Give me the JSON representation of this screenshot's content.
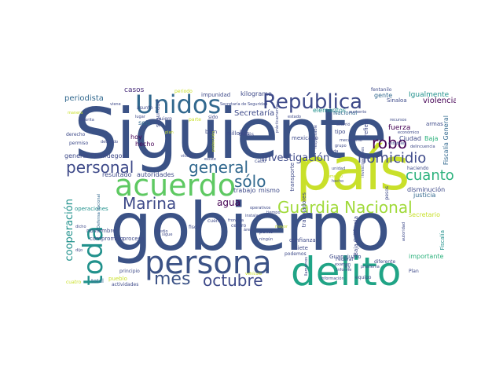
{
  "words": [
    {
      "text": "Siguiente",
      "color": "#3b5286"
    },
    {
      "text": "gobierno",
      "color": "#3b5286"
    },
    {
      "text": "país",
      "color": "#c9e02a"
    },
    {
      "text": "persona",
      "color": "#3b5286"
    },
    {
      "text": "delito",
      "color": "#20a486"
    },
    {
      "text": "acuerdo",
      "color": "#5ec962"
    },
    {
      "text": "Unidos",
      "color": "#31688e"
    },
    {
      "text": "República",
      "color": "#3e4a89"
    },
    {
      "text": "toda",
      "color": "#21918c"
    },
    {
      "text": "Guardia Nacional",
      "color": "#a0da39"
    },
    {
      "text": "homicidio",
      "color": "#3e4a89"
    },
    {
      "text": "personal",
      "color": "#3e4a89"
    },
    {
      "text": "general",
      "color": "#31688e"
    },
    {
      "text": "mes",
      "color": "#3b5286"
    },
    {
      "text": "octubre",
      "color": "#3e4a89"
    },
    {
      "text": "Marina",
      "color": "#3e4a89"
    },
    {
      "text": "sólo",
      "color": "#31688e"
    },
    {
      "text": "robo",
      "color": "#440154"
    },
    {
      "text": "cuanto",
      "color": "#2db27d"
    },
    {
      "text": "investigación",
      "color": "#3e4a89"
    },
    {
      "text": "cooperación",
      "color": "#21918c"
    },
    {
      "text": "agua",
      "color": "#440154"
    },
    {
      "text": "Secretaría",
      "color": "#3e4a89"
    },
    {
      "text": "periodista",
      "color": "#31688e"
    },
    {
      "text": "casos",
      "color": "#472c7a"
    },
    {
      "text": "impunidad",
      "color": "#3e4a89"
    },
    {
      "text": "kilogramo",
      "color": "#3e4a89"
    },
    {
      "text": "gente",
      "color": "#31688e"
    },
    {
      "text": "Igualmente",
      "color": "#21918c"
    },
    {
      "text": "violencia",
      "color": "#440154"
    },
    {
      "text": "Sinaloa",
      "color": "#3e4a89"
    },
    {
      "text": "fentanilo",
      "color": "#3e4a89"
    },
    {
      "text": "elementos",
      "color": "#21918c"
    },
    {
      "text": "Nacional",
      "color": "#31688e"
    },
    {
      "text": "armas",
      "color": "#3e4a89"
    },
    {
      "text": "fuerza",
      "color": "#440154"
    },
    {
      "text": "Ciudad",
      "color": "#3e4a89"
    },
    {
      "text": "Baja",
      "color": "#2db27d"
    },
    {
      "text": "Fiscalía General",
      "color": "#31688e"
    },
    {
      "text": "tipo",
      "color": "#3e4a89"
    },
    {
      "text": "refiere",
      "color": "#3e4a89"
    },
    {
      "text": "mexicano",
      "color": "#3e4a89"
    },
    {
      "text": "seguridad",
      "color": "#3e4a89"
    },
    {
      "text": "seis",
      "color": "#31688e"
    },
    {
      "text": "hoy",
      "color": "#440154"
    },
    {
      "text": "hecho",
      "color": "#440154"
    },
    {
      "text": "general Cienfuegos",
      "color": "#3e4a89"
    },
    {
      "text": "resultado",
      "color": "#3e4a89"
    },
    {
      "text": "autoridades",
      "color": "#3e4a89"
    },
    {
      "text": "trabajo",
      "color": "#3e4a89"
    },
    {
      "text": "mismo",
      "color": "#3e4a89"
    },
    {
      "text": "millones",
      "color": "#3e4a89"
    },
    {
      "text": "transporte",
      "color": "#3e4a89"
    },
    {
      "text": "trabajadores",
      "color": "#3e4a89"
    },
    {
      "text": "disminución",
      "color": "#3e4a89"
    },
    {
      "text": "justicia",
      "color": "#31688e"
    },
    {
      "text": "secretario",
      "color": "#c9e02a"
    },
    {
      "text": "Baja California",
      "color": "#3e4a89"
    },
    {
      "text": "confianza",
      "color": "#3e4a89"
    },
    {
      "text": "Guanajuato",
      "color": "#3e4a89"
    },
    {
      "text": "importante",
      "color": "#2db27d"
    },
    {
      "text": "diferente",
      "color": "#3e4a89"
    },
    {
      "text": "Plan",
      "color": "#3e4a89"
    },
    {
      "text": "Fiscalía",
      "color": "#21918c"
    },
    {
      "text": "siete",
      "color": "#3e4a89"
    },
    {
      "text": "operaciones",
      "color": "#21918c"
    },
    {
      "text": "noviembre",
      "color": "#3e4a89"
    },
    {
      "text": "principio",
      "color": "#3e4a89"
    },
    {
      "text": "total",
      "color": "#31688e"
    },
    {
      "text": "pueblo",
      "color": "#c9e02a"
    },
    {
      "text": "actividades",
      "color": "#3e4a89"
    },
    {
      "text": "compromiso",
      "color": "#3e4a89"
    },
    {
      "text": "proceso",
      "color": "#3e4a89"
    },
    {
      "text": "fiscal",
      "color": "#3e4a89"
    },
    {
      "text": "cuenta",
      "color": "#3e4a89"
    },
    {
      "text": "punto",
      "color": "#3e4a89"
    },
    {
      "text": "centro",
      "color": "#3e4a89"
    },
    {
      "text": "pesos",
      "color": "#3e4a89"
    },
    {
      "text": "podemos",
      "color": "#3e4a89"
    },
    {
      "text": "cabo",
      "color": "#3e4a89"
    },
    {
      "text": "través",
      "color": "#3e4a89"
    },
    {
      "text": "bien",
      "color": "#3e4a89"
    },
    {
      "text": "sido",
      "color": "#3e4a89"
    },
    {
      "text": "parte",
      "color": "#c9e02a"
    },
    {
      "text": "quiero",
      "color": "#3e4a89"
    },
    {
      "text": "haciendo",
      "color": "#3e4a89"
    },
    {
      "text": "informe",
      "color": "#3e4a89"
    },
    {
      "text": "Federal",
      "color": "#3e4a89"
    },
    {
      "text": "ley",
      "color": "#3e4a89"
    },
    {
      "text": "equipo",
      "color": "#3e4a89"
    },
    {
      "text": "información",
      "color": "#3e4a89"
    },
    {
      "text": "autoridad",
      "color": "#3e4a89"
    },
    {
      "text": "medio",
      "color": "#3e4a89"
    },
    {
      "text": "sigue",
      "color": "#3e4a89"
    },
    {
      "text": "año",
      "color": "#3e4a89"
    },
    {
      "text": "cuatro",
      "color": "#c9e02a"
    },
    {
      "text": "derecho",
      "color": "#3e4a89"
    },
    {
      "text": "permiso",
      "color": "#3e4a89"
    },
    {
      "text": "ahorita",
      "color": "#3e4a89"
    },
    {
      "text": "asunto",
      "color": "#3e4a89"
    },
    {
      "text": "periodo",
      "color": "#c9e02a"
    },
    {
      "text": "estatales",
      "color": "#3e4a89"
    },
    {
      "text": "económico",
      "color": "#3e4a89"
    },
    {
      "text": "delincuencia",
      "color": "#3e4a89"
    },
    {
      "text": "víctima",
      "color": "#3e4a89"
    },
    {
      "text": "instalaciones",
      "color": "#3e4a89"
    },
    {
      "text": "frontera",
      "color": "#3e4a89"
    },
    {
      "text": "área",
      "color": "#3e4a89"
    },
    {
      "text": "ningún",
      "color": "#3e4a89"
    },
    {
      "text": "problema",
      "color": "#3e4a89"
    },
    {
      "text": "examen",
      "color": "#3e4a89"
    },
    {
      "text": "tiempo",
      "color": "#3e4a89"
    },
    {
      "text": "mayor",
      "color": "#c9e02a"
    },
    {
      "text": "operativos",
      "color": "#3e4a89"
    },
    {
      "text": "existe",
      "color": "#3e4a89"
    },
    {
      "text": "manera",
      "color": "#c9e02a"
    },
    {
      "text": "viene",
      "color": "#3e4a89"
    },
    {
      "text": "Defensa Nacional",
      "color": "#31688e"
    },
    {
      "text": "prácticamente",
      "color": "#3e4a89"
    },
    {
      "text": "Secretaría de Seguridad",
      "color": "#3e4a89"
    },
    {
      "text": "detenido",
      "color": "#3e4a89"
    },
    {
      "text": "dicho",
      "color": "#3e4a89"
    },
    {
      "text": "vehículo",
      "color": "#c9e02a"
    },
    {
      "text": "grupo",
      "color": "#3e4a89"
    },
    {
      "text": "nada",
      "color": "#3e4a89"
    },
    {
      "text": "responsable",
      "color": "#3e4a89"
    },
    {
      "text": "ocurrió",
      "color": "#3e4a89"
    },
    {
      "text": "mecanismo",
      "color": "#3e4a89"
    },
    {
      "text": "investigaciones",
      "color": "#3e4a89"
    },
    {
      "text": "llamamos",
      "color": "#3e4a89"
    },
    {
      "text": "unidad",
      "color": "#3e4a89"
    },
    {
      "text": "momento",
      "color": "#c9e02a"
    },
    {
      "text": "hecho",
      "color": "#3e4a89"
    },
    {
      "text": "recursos",
      "color": "#3e4a89"
    },
    {
      "text": "dijo",
      "color": "#3e4a89"
    },
    {
      "text": "lugar",
      "color": "#3e4a89"
    },
    {
      "text": "protección",
      "color": "#c9e02a"
    },
    {
      "text": "aumento",
      "color": "#3e4a89"
    },
    {
      "text": "estado",
      "color": "#3e4a89"
    },
    {
      "text": "plan",
      "color": "#c9e02a"
    }
  ]
}
